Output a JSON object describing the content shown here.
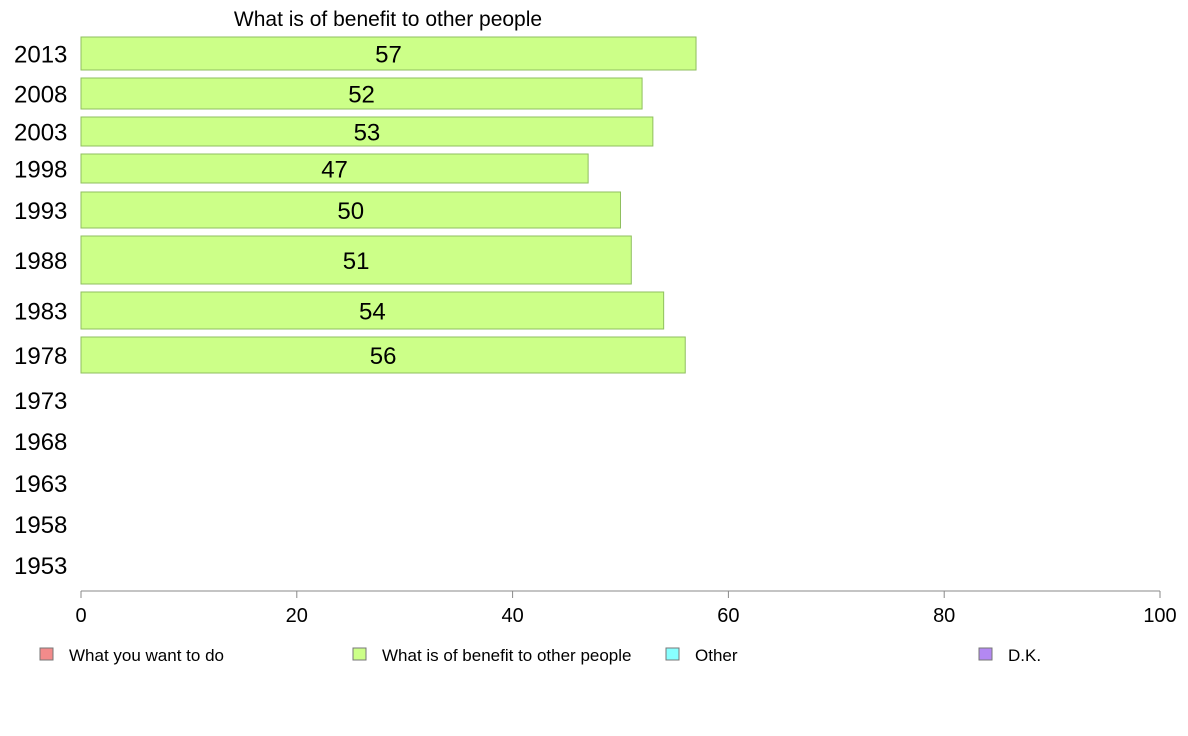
{
  "chart_data": {
    "type": "bar",
    "orientation": "horizontal",
    "title": "What is of benefit to other people",
    "categories": [
      "2013",
      "2008",
      "2003",
      "1998",
      "1993",
      "1988",
      "1983",
      "1978",
      "1973",
      "1968",
      "1963",
      "1958",
      "1953"
    ],
    "series": [
      {
        "name": "What is of benefit to other people",
        "color": "#ccff88",
        "values": [
          57,
          52,
          53,
          47,
          50,
          51,
          54,
          56,
          null,
          null,
          null,
          null,
          null
        ]
      }
    ],
    "xlim": [
      0,
      100
    ],
    "xticks": [
      0,
      20,
      40,
      60,
      80,
      100
    ],
    "grid": false,
    "legend_placement": "bottom",
    "legend": [
      {
        "label": "What you want to do",
        "color": "#f28b8b"
      },
      {
        "label": "What is of benefit to other people",
        "color": "#ccff88"
      },
      {
        "label": "Other",
        "color": "#88ffff"
      },
      {
        "label": "D.K.",
        "color": "#b388f2"
      }
    ]
  }
}
